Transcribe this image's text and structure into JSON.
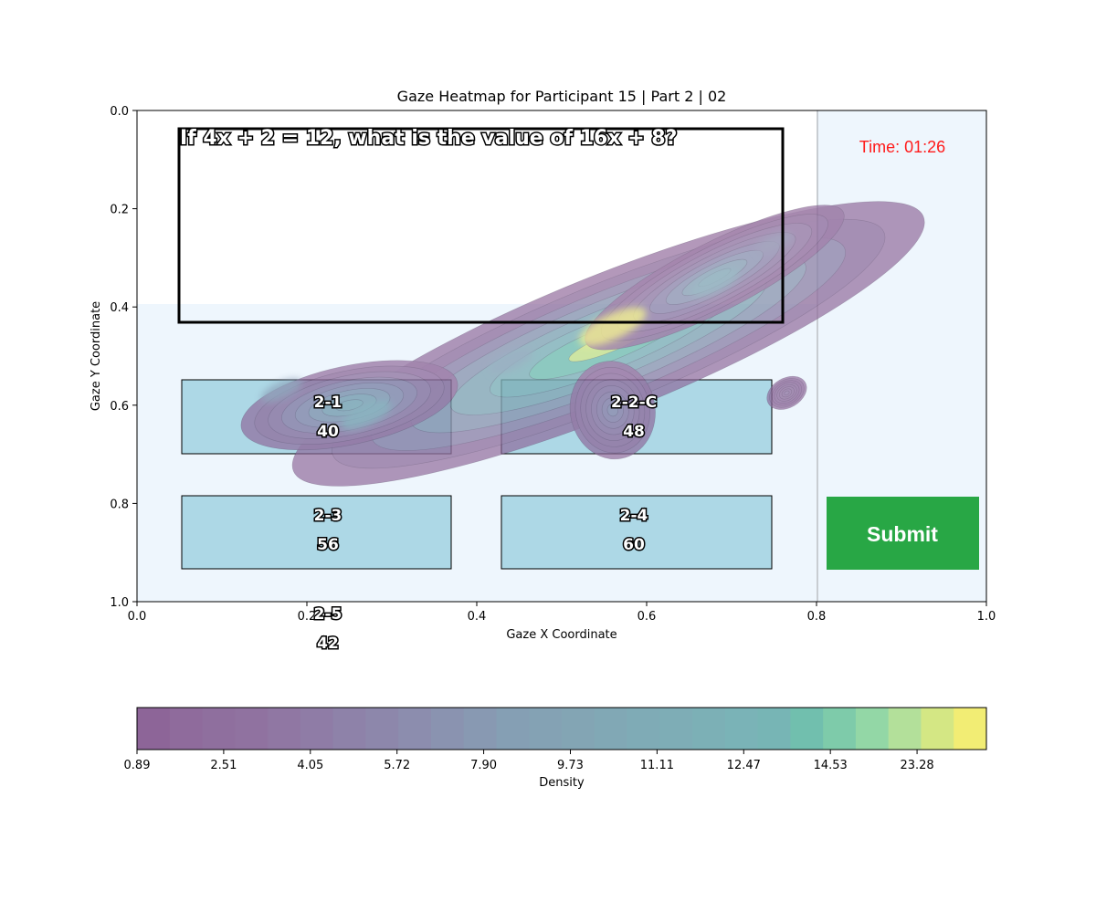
{
  "chart_data": {
    "type": "heatmap",
    "title": "Gaze Heatmap for Participant 15 | Part 2 | 02",
    "xlabel": "Gaze X Coordinate",
    "ylabel": "Gaze Y Coordinate",
    "xlim": [
      0.0,
      1.0
    ],
    "ylim": [
      1.0,
      0.0
    ],
    "y_inverted": true,
    "x_ticks": [
      "0.0",
      "0.2",
      "0.4",
      "0.6",
      "0.8",
      "1.0"
    ],
    "y_ticks": [
      "0.0",
      "0.2",
      "0.4",
      "0.6",
      "0.8",
      "1.0"
    ],
    "stimulus": {
      "question": "If 4x + 2 = 12, what is the value of 16x + 8?",
      "timer": "Time: 01:26",
      "submit_label": "Submit",
      "answer_options": [
        {
          "label": "2-1",
          "value": "40"
        },
        {
          "label": "2-2-C",
          "value": "48"
        },
        {
          "label": "2-3",
          "value": "56"
        },
        {
          "label": "2-4",
          "value": "60"
        },
        {
          "label": "2-5",
          "value": "42"
        }
      ]
    },
    "density_hotspots": [
      {
        "x": 0.56,
        "y": 0.44,
        "weight": 1.0
      },
      {
        "x": 0.68,
        "y": 0.35,
        "weight": 0.55
      },
      {
        "x": 0.27,
        "y": 0.62,
        "weight": 0.6
      },
      {
        "x": 0.17,
        "y": 0.57,
        "weight": 0.4
      },
      {
        "x": 0.44,
        "y": 0.51,
        "weight": 0.45
      },
      {
        "x": 0.75,
        "y": 0.27,
        "weight": 0.3
      }
    ],
    "colorbar": {
      "label": "Density",
      "tick_labels": [
        "0.89",
        "2.51",
        "4.05",
        "5.72",
        "7.90",
        "9.73",
        "11.11",
        "12.47",
        "14.53",
        "23.28"
      ],
      "colors": [
        "#8d6598",
        "#8f6b9c",
        "#8f6f9e",
        "#9072a0",
        "#9077a3",
        "#8f7ca6",
        "#8e82a9",
        "#8d87ab",
        "#8c8dae",
        "#8a93b0",
        "#8899b2",
        "#859fb4",
        "#84a2b4",
        "#83a5b4",
        "#81a8b5",
        "#7fabb6",
        "#7eadb6",
        "#7cb0b6",
        "#7ab3b7",
        "#77b5b5",
        "#71bfae",
        "#7ecbaa",
        "#93d7a6",
        "#b3e09a",
        "#d4e784",
        "#f2ed74"
      ]
    }
  }
}
